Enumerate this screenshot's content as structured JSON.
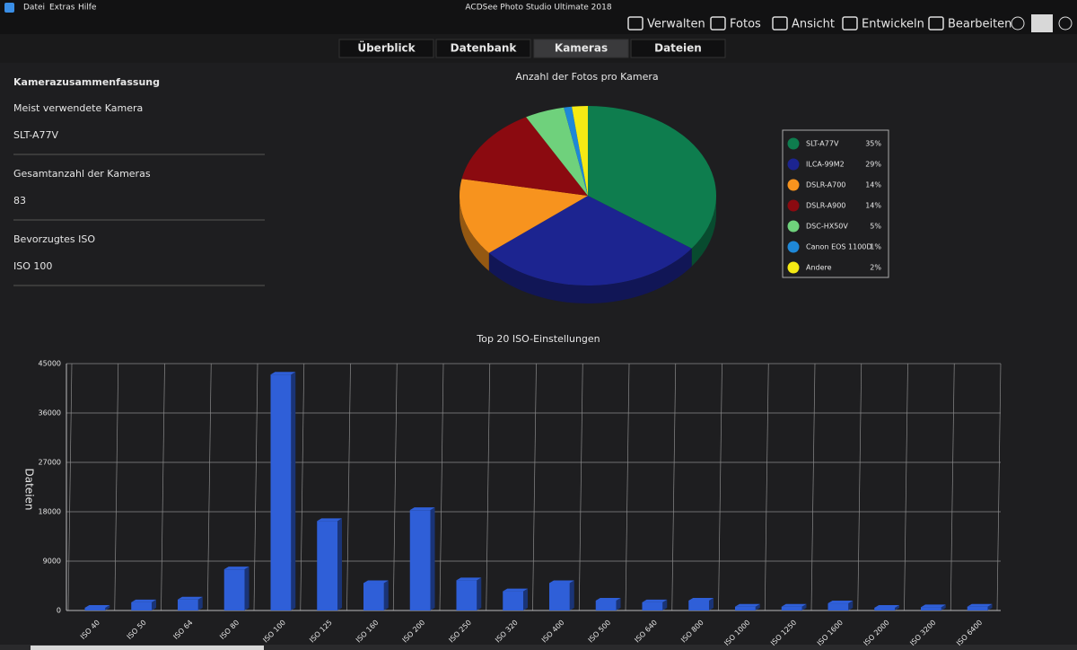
{
  "app_title": "ACDSee Photo Studio Ultimate 2018",
  "menu": [
    "Datei",
    "Extras",
    "Hilfe"
  ],
  "modes": [
    "Verwalten",
    "Fotos",
    "Ansicht",
    "Entwickeln",
    "Bearbeiten"
  ],
  "tabs": [
    "Überblick",
    "Datenbank",
    "Kameras",
    "Dateien"
  ],
  "sidebar": {
    "title": "Kamerazusammenfassung",
    "items": [
      {
        "label": "Meist verwendete Kamera",
        "value": "SLT-A77V"
      },
      {
        "label": "Gesamtanzahl der Kameras",
        "value": "83"
      },
      {
        "label": "Bevorzugtes ISO",
        "value": "ISO 100"
      }
    ]
  },
  "chart_data": [
    {
      "type": "pie",
      "title": "Anzahl der Fotos pro Kamera",
      "categories": [
        "SLT-A77V",
        "ILCA-99M2",
        "DSLR-A700",
        "DSLR-A900",
        "DSC-HX50V",
        "Canon EOS 1100D",
        "Andere"
      ],
      "values": [
        35,
        29,
        14,
        14,
        5,
        1,
        2
      ],
      "value_labels": [
        "35%",
        "29%",
        "14%",
        "14%",
        "5%",
        "1%",
        "2%"
      ],
      "colors": [
        "#0e7d4e",
        "#1c2490",
        "#f7931e",
        "#8b0a10",
        "#6fd17c",
        "#1e88d8",
        "#f5ea14"
      ],
      "legend": "right"
    },
    {
      "type": "bar",
      "title": "Top 20 ISO-Einstellungen",
      "y_label": "Dateien",
      "categories": [
        "ISO 40",
        "ISO 50",
        "ISO 64",
        "ISO 80",
        "ISO 100",
        "ISO 125",
        "ISO 160",
        "ISO 200",
        "ISO 250",
        "ISO 320",
        "ISO 400",
        "ISO 500",
        "ISO 640",
        "ISO 800",
        "ISO 1000",
        "ISO 1250",
        "ISO 1600",
        "ISO 2000",
        "ISO 3200",
        "ISO 6400"
      ],
      "values": [
        500,
        1500,
        2000,
        7500,
        43000,
        16300,
        5000,
        18300,
        5500,
        3500,
        5000,
        1800,
        1500,
        1800,
        700,
        700,
        1300,
        500,
        600,
        700
      ],
      "color": "#2f5fd8",
      "ylim": [
        0,
        45000
      ],
      "yticks": [
        0,
        9000,
        18000,
        27000,
        36000,
        45000
      ],
      "grid": true
    }
  ]
}
